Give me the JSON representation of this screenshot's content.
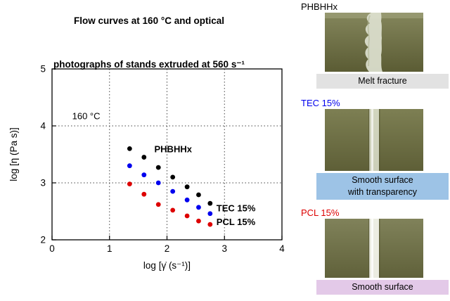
{
  "title": {
    "line1": "Flow curves at 160 °C and  optical",
    "line2": "photographs of stands extruded at 560 s⁻¹"
  },
  "chart_data": {
    "type": "scatter",
    "title": "Flow curves at 160 °C and optical photographs of stands extruded at 560 s⁻¹",
    "xlabel": "log [γ̇ (s⁻¹)]",
    "ylabel": "log [η (Pa s)]",
    "xlim": [
      0,
      4
    ],
    "ylim": [
      2,
      5
    ],
    "xticks": [
      0,
      1,
      2,
      3,
      4
    ],
    "yticks": [
      2,
      3,
      4,
      5
    ],
    "grid": "dotted-interior",
    "legend_position": "in-plot-text-labels",
    "annotations": [
      {
        "text": "160 °C",
        "x": 0.35,
        "y": 4.12,
        "color": "#000000"
      }
    ],
    "series_labels": [
      {
        "text": "PHBHHx",
        "x": 1.78,
        "y": 3.54,
        "color": "#000000"
      },
      {
        "text": "TEC 15%",
        "x": 2.86,
        "y": 2.5,
        "color": "#0000ee"
      },
      {
        "text": "PCL 15%",
        "x": 2.86,
        "y": 2.26,
        "color": "#dd0000"
      }
    ],
    "series": [
      {
        "name": "PHBHHx",
        "color": "#000000",
        "x": [
          1.35,
          1.6,
          1.85,
          2.1,
          2.35,
          2.55,
          2.75
        ],
        "y": [
          3.6,
          3.45,
          3.27,
          3.1,
          2.93,
          2.79,
          2.64
        ]
      },
      {
        "name": "TEC 15%",
        "color": "#0000ee",
        "x": [
          1.35,
          1.6,
          1.85,
          2.1,
          2.35,
          2.55,
          2.75
        ],
        "y": [
          3.3,
          3.14,
          3.0,
          2.85,
          2.7,
          2.57,
          2.46
        ]
      },
      {
        "name": "PCL 15%",
        "color": "#dd0000",
        "x": [
          1.35,
          1.6,
          1.85,
          2.1,
          2.35,
          2.55,
          2.75
        ],
        "y": [
          2.98,
          2.8,
          2.62,
          2.52,
          2.42,
          2.33,
          2.27
        ]
      }
    ]
  },
  "photos": [
    {
      "label": "PHBHHx",
      "label_color": "#000000",
      "caption": "Melt fracture",
      "caption_bg": "#e2e2e2",
      "surface": "rough"
    },
    {
      "label": "TEC 15%",
      "label_color": "#0000ee",
      "caption": "Smooth surface\nwith transparency",
      "caption_bg": "#9dc3e6",
      "surface": "smooth-transparent"
    },
    {
      "label": "PCL 15%",
      "label_color": "#dd0000",
      "caption": "Smooth surface",
      "caption_bg": "#e3c9e8",
      "surface": "smooth"
    }
  ]
}
